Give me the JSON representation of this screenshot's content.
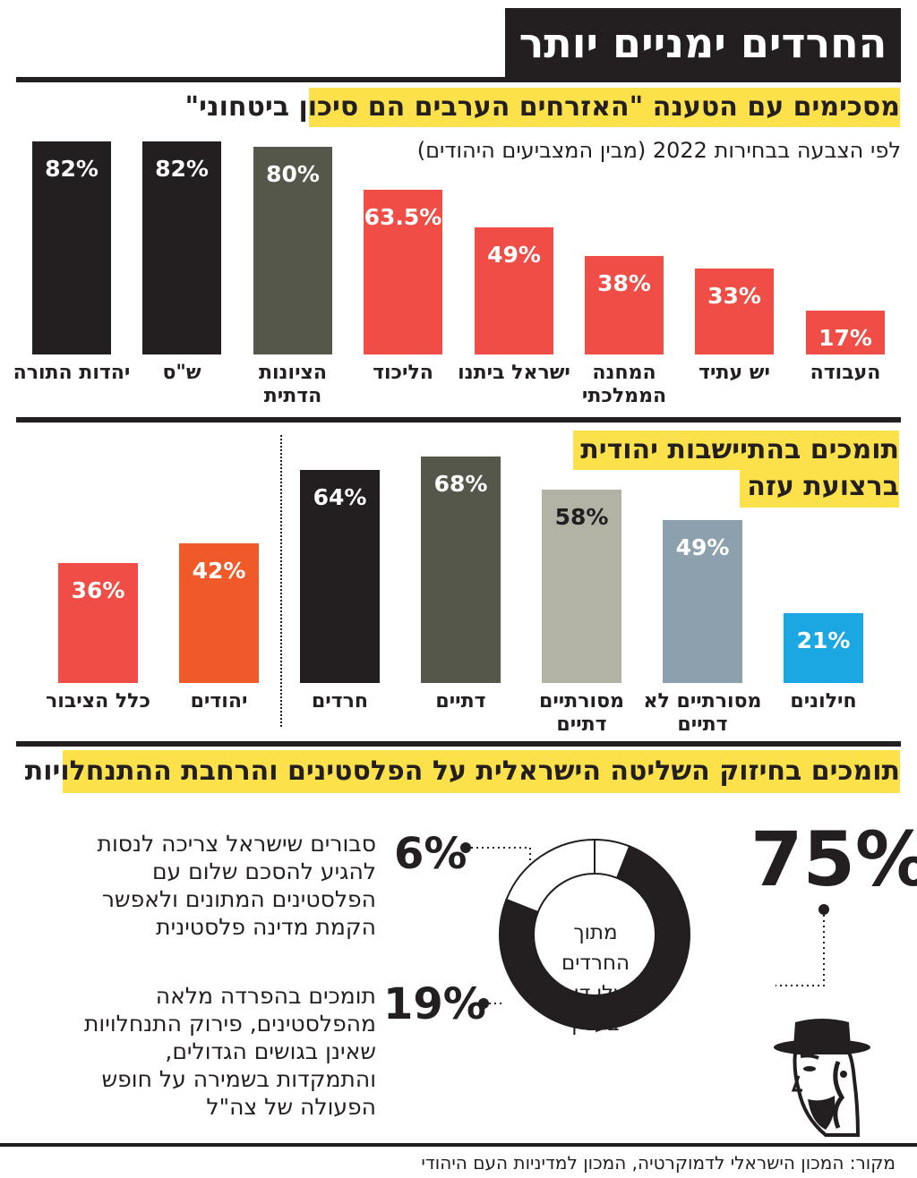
{
  "main_title": "החרדים ימניים יותר",
  "section1": {
    "title": "מסכימים עם הטענה \"האזרחים הערבים הם סיכון ביטחוני\"",
    "subtitle": "לפי הצבעה בבחירות 2022 (מבין המצביעים היהודים)"
  },
  "section2": {
    "title_line1": "תומכים בהתיישבות יהודית",
    "title_line2": "ברצועת עזה"
  },
  "section3": {
    "title": "תומכים בחיזוק השליטה הישראלית על הפלסטינים והרחבת ההתנחלויות",
    "big_value": "75%",
    "center_lines": [
      "מתוך",
      "החרדים",
      "בעלי דעה",
      "בעניין"
    ],
    "value_6": "6%",
    "desc_6": [
      "סבורים שישראל צריכה לנסות",
      "להגיע להסכם שלום עם",
      "הפלסטינים המתונים ולאפשר",
      "הקמת מדינה פלסטינית"
    ],
    "value_19": "19%",
    "desc_19": [
      "תומכים בהפרדה מלאה",
      "מהפלסטינים, פירוק התנחלויות",
      "שאינן בגושים הגדולים,",
      "והתמקדות בשמירה על חופש",
      "הפעולה של צה\"ל"
    ]
  },
  "source": "מקור: המכון הישראלי לדמוקרטיה, המכון למדיניות העם היהודי",
  "colors": {
    "black": "#231f20",
    "olive": "#54574a",
    "red": "#ef4d45",
    "orange": "#f05a28",
    "beige": "#b3b3a5",
    "steel": "#8ca0ad",
    "sky": "#1aa7e2",
    "yellow": "#fce14b"
  },
  "icons": [
    "haredi-man-icon"
  ],
  "chart_data": [
    {
      "type": "bar",
      "title": "מסכימים עם הטענה \"האזרחים הערבים הם סיכון ביטחוני\"",
      "subtitle": "לפי הצבעה בבחירות 2022 (מבין המצביעים היהודים)",
      "ylim": [
        0,
        90
      ],
      "unit": "%",
      "bars": [
        {
          "label": "יהדות התורה",
          "value": 82,
          "display": "82%",
          "color": "#231f20"
        },
        {
          "label": "ש\"ס",
          "value": 82,
          "display": "82%",
          "color": "#231f20"
        },
        {
          "label": "הציונות הדתית",
          "value": 80,
          "display": "80%",
          "color": "#54574a"
        },
        {
          "label": "הליכוד",
          "value": 63.5,
          "display": "63.5%",
          "color": "#ef4d45"
        },
        {
          "label": "ישראל ביתנו",
          "value": 49,
          "display": "49%",
          "color": "#ef4d45"
        },
        {
          "label": "המחנה הממלכתי",
          "value": 38,
          "display": "38%",
          "color": "#ef4d45"
        },
        {
          "label": "יש עתיד",
          "value": 33,
          "display": "33%",
          "color": "#ef4d45"
        },
        {
          "label": "העבודה",
          "value": 17,
          "display": "17%",
          "color": "#ef4d45"
        }
      ]
    },
    {
      "type": "bar",
      "title": "תומכים בהתיישבות יהודית ברצועת עזה",
      "ylim": [
        0,
        85
      ],
      "unit": "%",
      "bars": [
        {
          "label": "כלל הציבור",
          "value": 36,
          "display": "36%",
          "color": "#ef4d45"
        },
        {
          "label": "יהודים",
          "value": 42,
          "display": "42%",
          "color": "#f05a28"
        },
        {
          "label": "חרדים",
          "value": 64,
          "display": "64%",
          "color": "#231f20"
        },
        {
          "label": "דתיים",
          "value": 68,
          "display": "68%",
          "color": "#54574a"
        },
        {
          "label": "מסורתיים דתיים",
          "value": 58,
          "display": "58%",
          "color": "#b3b3a5"
        },
        {
          "label": "מסורתיים לא דתיים",
          "value": 49,
          "display": "49%",
          "color": "#8ca0ad"
        },
        {
          "label": "חילונים",
          "value": 21,
          "display": "21%",
          "color": "#1aa7e2"
        }
      ]
    },
    {
      "type": "pie",
      "title": "תומכים בחיזוק השליטה הישראלית על הפלסטינים והרחבת ההתנחלויות",
      "slices": [
        {
          "label": "תומכים",
          "value": 75,
          "display": "75%",
          "color": "#231f20"
        },
        {
          "label": "סבורים שישראל צריכה לנסות להגיע להסכם שלום עם הפלסטינים המתונים ולאפשר הקמת מדינה פלסטינית",
          "value": 6,
          "display": "6%",
          "color": "#ffffff"
        },
        {
          "label": "תומכים בהפרדה מלאה מהפלסטינים, פירוק התנחלויות שאינן בגושים הגדולים, והתמקדות בשמירה על חופש הפעולה של צה\"ל",
          "value": 19,
          "display": "19%",
          "color": "#ffffff"
        }
      ]
    }
  ]
}
